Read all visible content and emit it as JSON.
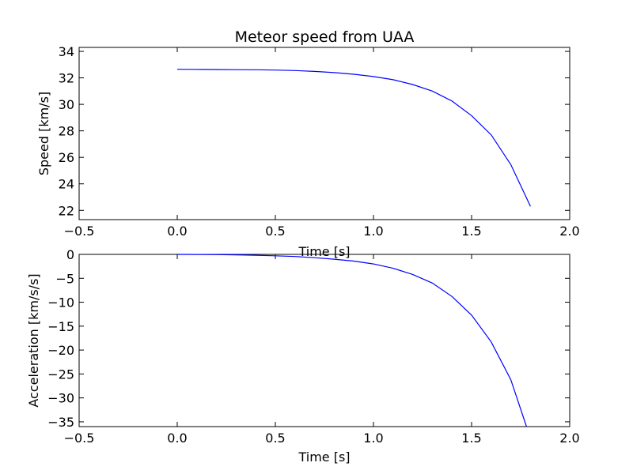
{
  "chart_data": [
    {
      "type": "line",
      "title": "Meteor speed from  UAA",
      "xlabel": "Time [s]",
      "ylabel": "Speed [km/s]",
      "xlim": [
        -0.5,
        2.0
      ],
      "ylim": [
        21.3,
        34.3
      ],
      "xticks": [
        -0.5,
        0.0,
        0.5,
        1.0,
        1.5,
        2.0
      ],
      "xtick_labels": [
        "−0.5",
        "0.0",
        "0.5",
        "1.0",
        "1.5",
        "2.0"
      ],
      "yticks": [
        22,
        24,
        26,
        28,
        30,
        32,
        34
      ],
      "ytick_labels": [
        "22",
        "24",
        "26",
        "28",
        "30",
        "32",
        "34"
      ],
      "grid": false,
      "color": "#0000ff",
      "series": [
        {
          "x": [
            0.0,
            0.1,
            0.2,
            0.3,
            0.4,
            0.5,
            0.6,
            0.7,
            0.8,
            0.9,
            1.0,
            1.1,
            1.2,
            1.3,
            1.4,
            1.5,
            1.6,
            1.7,
            1.8
          ],
          "y": [
            32.65,
            32.64,
            32.63,
            32.62,
            32.61,
            32.59,
            32.55,
            32.49,
            32.4,
            32.27,
            32.1,
            31.86,
            31.5,
            31.0,
            30.25,
            29.15,
            27.7,
            25.45,
            22.3
          ]
        }
      ]
    },
    {
      "type": "line",
      "title": "",
      "xlabel": "Time [s]",
      "ylabel": "Acceleration [km/s/s]",
      "xlim": [
        -0.5,
        2.0
      ],
      "ylim": [
        -36,
        0
      ],
      "xticks": [
        -0.5,
        0.0,
        0.5,
        1.0,
        1.5,
        2.0
      ],
      "xtick_labels": [
        "−0.5",
        "0.0",
        "0.5",
        "1.0",
        "1.5",
        "2.0"
      ],
      "yticks": [
        0,
        -5,
        -10,
        -15,
        -20,
        -25,
        -30,
        -35
      ],
      "ytick_labels": [
        "0",
        "−5",
        "−10",
        "−15",
        "−20",
        "−25",
        "−30",
        "−35"
      ],
      "grid": false,
      "color": "#0000ff",
      "series": [
        {
          "x": [
            0.0,
            0.1,
            0.2,
            0.3,
            0.4,
            0.5,
            0.6,
            0.7,
            0.8,
            0.9,
            1.0,
            1.1,
            1.2,
            1.3,
            1.4,
            1.5,
            1.6,
            1.7,
            1.78
          ],
          "y": [
            0.0,
            -0.02,
            -0.05,
            -0.1,
            -0.18,
            -0.3,
            -0.45,
            -0.7,
            -1.0,
            -1.4,
            -2.0,
            -2.9,
            -4.2,
            -6.0,
            -8.8,
            -12.7,
            -18.3,
            -26.2,
            -36.0
          ]
        }
      ]
    }
  ]
}
